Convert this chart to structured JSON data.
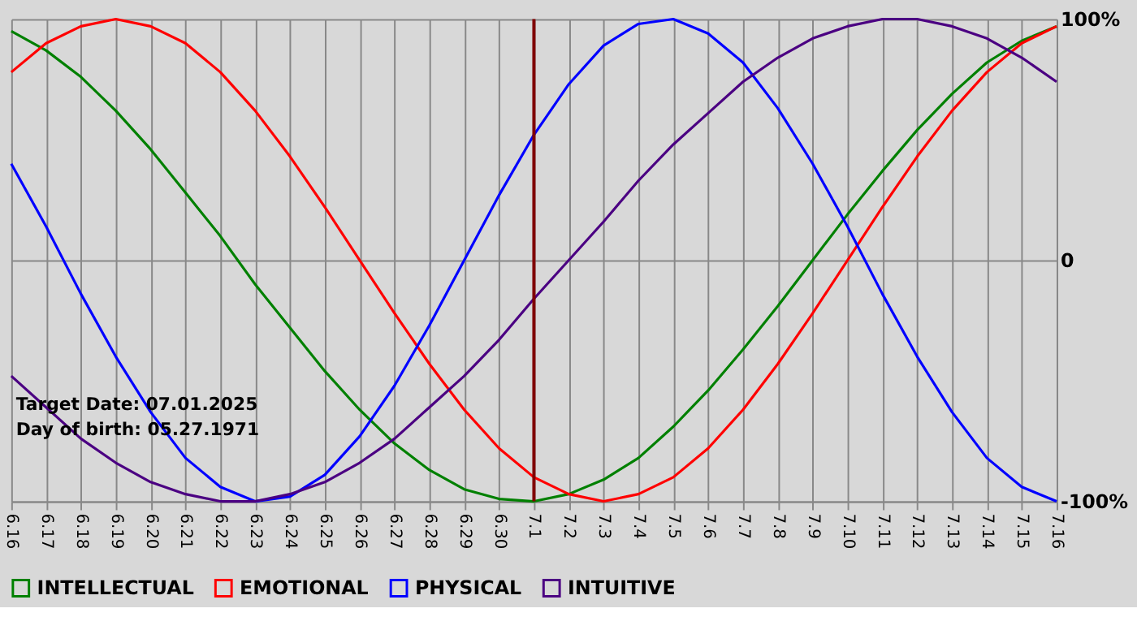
{
  "chart_data": {
    "type": "line",
    "categories": [
      "6.16",
      "6.17",
      "6.18",
      "6.19",
      "6.20",
      "6.21",
      "6.22",
      "6.23",
      "6.24",
      "6.25",
      "6.26",
      "6.27",
      "6.28",
      "6.29",
      "6.30",
      "7.1",
      "7.2",
      "7.3",
      "7.4",
      "7.5",
      "7.6",
      "7.7",
      "7.8",
      "7.9",
      "7.10",
      "7.11",
      "7.12",
      "7.13",
      "7.14",
      "7.15",
      "7.16"
    ],
    "series": [
      {
        "name": "INTELLECTUAL",
        "color": "#008000",
        "values": [
          0.95,
          0.87,
          0.76,
          0.62,
          0.46,
          0.28,
          0.1,
          -0.1,
          -0.28,
          -0.46,
          -0.62,
          -0.76,
          -0.87,
          -0.95,
          -0.99,
          -1.0,
          -0.97,
          -0.91,
          -0.82,
          -0.69,
          -0.54,
          -0.37,
          -0.19,
          0,
          0.19,
          0.37,
          0.54,
          0.69,
          0.82,
          0.91,
          0.97
        ]
      },
      {
        "name": "EMOTIONAL",
        "color": "#ff0000",
        "values": [
          0.78,
          0.9,
          0.97,
          1.0,
          0.97,
          0.9,
          0.78,
          0.62,
          0.43,
          0.22,
          0,
          -0.22,
          -0.43,
          -0.62,
          -0.78,
          -0.9,
          -0.97,
          -1.0,
          -0.97,
          -0.9,
          -0.78,
          -0.62,
          -0.43,
          -0.22,
          0,
          0.22,
          0.43,
          0.62,
          0.78,
          0.9,
          0.97
        ]
      },
      {
        "name": "PHYSICAL",
        "color": "#0000ff",
        "values": [
          0.4,
          0.14,
          -0.14,
          -0.4,
          -0.63,
          -0.82,
          -0.94,
          -1.0,
          -0.98,
          -0.89,
          -0.73,
          -0.52,
          -0.27,
          0,
          0.27,
          0.52,
          0.73,
          0.89,
          0.98,
          1.0,
          0.94,
          0.82,
          0.63,
          0.4,
          0.14,
          -0.14,
          -0.4,
          -0.63,
          -0.82,
          -0.94,
          -1.0
        ]
      },
      {
        "name": "INTUITIVE",
        "color": "#4b0082",
        "values": [
          -0.48,
          -0.61,
          -0.74,
          -0.84,
          -0.92,
          -0.97,
          -1.0,
          -1.0,
          -0.97,
          -0.92,
          -0.84,
          -0.74,
          -0.61,
          -0.48,
          -0.33,
          -0.16,
          0,
          0.16,
          0.33,
          0.48,
          0.61,
          0.74,
          0.84,
          0.92,
          0.97,
          1.0,
          1.0,
          0.97,
          0.92,
          0.84,
          0.74
        ]
      }
    ],
    "ylim": [
      -1,
      1
    ],
    "yticks": [
      {
        "value": -1,
        "label": "-100%"
      },
      0,
      {
        "value": 1,
        "label": "100%"
      }
    ],
    "grid": true,
    "legend": "bottom",
    "marker": "none",
    "line_style": "solid",
    "ref_lines": [
      {
        "axis": "x",
        "value": "7.1",
        "color": "#800000"
      }
    ],
    "annotations": [
      "Target Date: 07.01.2025",
      "Day of birth: 05.27.1971"
    ]
  }
}
